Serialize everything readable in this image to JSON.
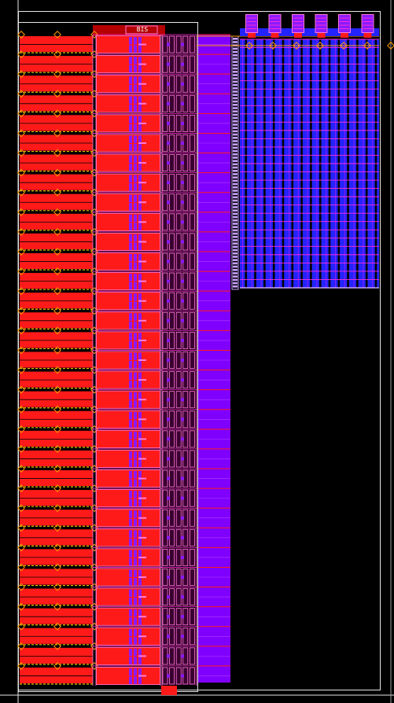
{
  "layout_view": {
    "background": "#000000",
    "colors": {
      "boundary": "#e6e6e6",
      "metal_red": "#ff1a1a",
      "metal_red_dark": "#b40000",
      "metal_blue": "#2323ff",
      "via_purple": "#8a1aff",
      "violet_column": "#7f00ff",
      "pink_outline": "#ff7ad6",
      "magenta": "#ff2bd6",
      "orange_marker": "#ff9900",
      "yellow_stripe": "#e6c200",
      "lavender": "#c9a0ff"
    },
    "regions": {
      "left_array": {
        "rows": 33
      },
      "right_array": {
        "columns": 15,
        "rows": 30
      },
      "top_cells": {
        "count": 6
      }
    },
    "labels": {
      "top_block": "BIS"
    }
  }
}
